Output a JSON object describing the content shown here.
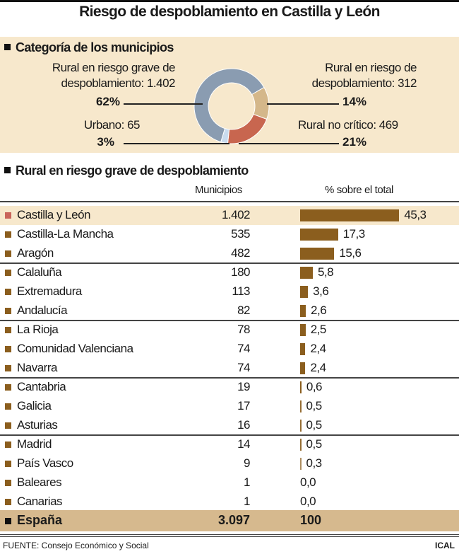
{
  "title": "Riesgo de despoblamiento en Castilla y León",
  "chart_data": [
    {
      "type": "pie",
      "title": "Categoría de los municipios",
      "donut": true,
      "slices": [
        {
          "label": "Rural en riesgo de despoblamiento",
          "count": "312",
          "value": 14,
          "pct": "14%",
          "color": "#d4b78a"
        },
        {
          "label": "Rural no crítico",
          "count": "469",
          "value": 21,
          "pct": "21%",
          "color": "#c8664f"
        },
        {
          "label": "Urbano",
          "count": "65",
          "value": 3,
          "pct": "3%",
          "color": "#c9dbee"
        },
        {
          "label": "Rural en riesgo grave de despoblamiento",
          "count": "1.402",
          "value": 62,
          "pct": "62%",
          "color": "#8a9cb1"
        }
      ],
      "text": {
        "grave1": "Rural en riesgo grave de",
        "grave2": "despoblamiento: 1.402",
        "riesgo1": "Rural en riesgo de",
        "riesgo2": "despoblamiento: 312",
        "urbano": "Urbano: 65",
        "nocritico": "Rural no crítico: 469"
      }
    },
    {
      "type": "bar",
      "title": "Rural en riesgo grave de despoblamiento",
      "col_municipios": "Municipios",
      "col_pct": "% sobre el total",
      "rows": [
        {
          "name": "Castilla y León",
          "municipios": "1.402",
          "pct": 45.3,
          "pct_label": "45,3"
        },
        {
          "name": "Castilla-La Mancha",
          "municipios": "535",
          "pct": 17.3,
          "pct_label": "17,3"
        },
        {
          "name": "Aragón",
          "municipios": "482",
          "pct": 15.6,
          "pct_label": "15,6"
        },
        {
          "name": "Calaluña",
          "municipios": "180",
          "pct": 5.8,
          "pct_label": "5,8"
        },
        {
          "name": "Extremadura",
          "municipios": "113",
          "pct": 3.6,
          "pct_label": "3,6"
        },
        {
          "name": "Andalucía",
          "municipios": "82",
          "pct": 2.6,
          "pct_label": "2,6"
        },
        {
          "name": "La Rioja",
          "municipios": "78",
          "pct": 2.5,
          "pct_label": "2,5"
        },
        {
          "name": "Comunidad Valenciana",
          "municipios": "74",
          "pct": 2.4,
          "pct_label": "2,4"
        },
        {
          "name": "Navarra",
          "municipios": "74",
          "pct": 2.4,
          "pct_label": "2,4"
        },
        {
          "name": "Cantabria",
          "municipios": "19",
          "pct": 0.6,
          "pct_label": "0,6"
        },
        {
          "name": "Galicia",
          "municipios": "17",
          "pct": 0.5,
          "pct_label": "0,5"
        },
        {
          "name": "Asturias",
          "municipios": "16",
          "pct": 0.5,
          "pct_label": "0,5"
        },
        {
          "name": "Madrid",
          "municipios": "14",
          "pct": 0.5,
          "pct_label": "0,5"
        },
        {
          "name": "País Vasco",
          "municipios": "9",
          "pct": 0.3,
          "pct_label": "0,3"
        },
        {
          "name": "Baleares",
          "municipios": "1",
          "pct": 0.0,
          "pct_label": "0,0"
        },
        {
          "name": "Canarias",
          "municipios": "1",
          "pct": 0.0,
          "pct_label": "0,0"
        }
      ],
      "total": {
        "name": "España",
        "municipios": "3.097",
        "pct_label": "100"
      },
      "bar_color": "#8b5e1e"
    }
  ],
  "footer": {
    "source": "FUENTE: Consejo Económico y Social",
    "credit": "ICAL"
  }
}
